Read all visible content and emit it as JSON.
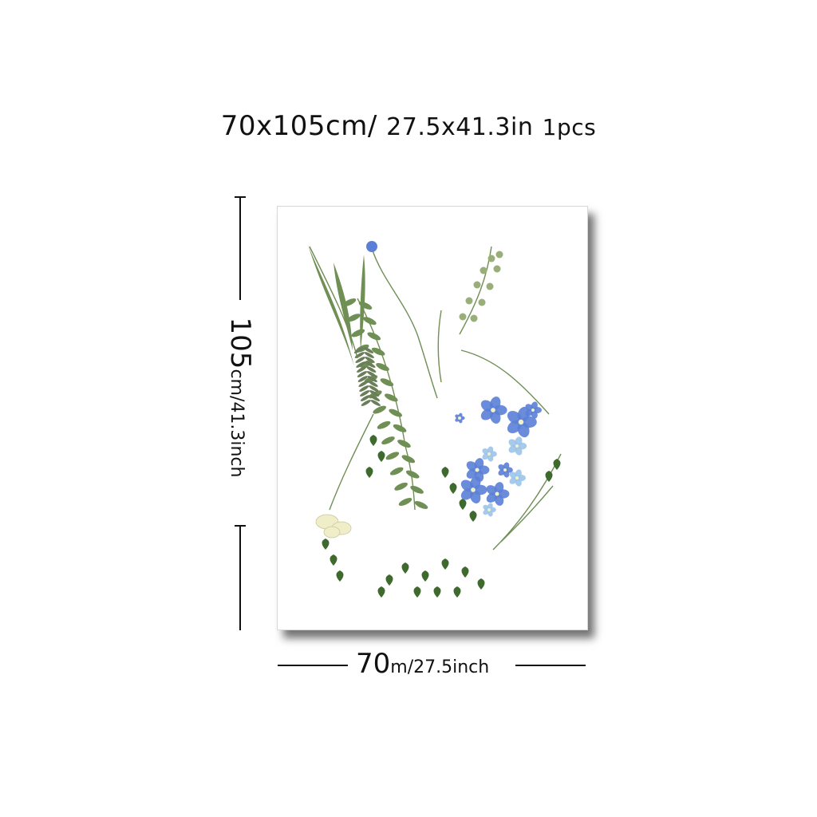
{
  "header": {
    "size_cm": "70x105cm/",
    "size_in": "27.5x41.3in",
    "qty": "1pcs"
  },
  "height_dim": {
    "value": "105",
    "unit": "cm/41.3inch"
  },
  "width_dim": {
    "value": "70",
    "unit": "m/27.5inch"
  },
  "artwork": {
    "subject": "pressed-flower pregnant silhouette",
    "colors": {
      "leaf_dark": "#3f6a2e",
      "leaf_mid": "#6f8f55",
      "leaf_light": "#9aae7a",
      "flower_blue": "#5b7fd6",
      "flower_light": "#9cc4ea",
      "flower_cream": "#efeec8"
    }
  }
}
